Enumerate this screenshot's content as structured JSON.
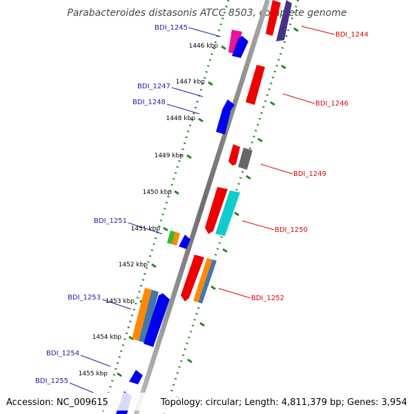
{
  "title": "Parabacteroides distasonis ATCC 8503, complete genome",
  "footer": {
    "accession": "Accession: NC_009615",
    "topology": "Topology: circular; Length: 4,811,379 bp; Genes: 3,954"
  },
  "kbp_labels": [
    "1446 kbp",
    "1447 kbp",
    "1448 kbp",
    "1449 kbp",
    "1450 kbp",
    "1451 kbp",
    "1452 kbp",
    "1453 kbp",
    "1454 kbp",
    "1455 kbp"
  ],
  "gene_labels": [
    {
      "text": "BDI_1245",
      "strand": "minus"
    },
    {
      "text": "BDI_1247",
      "strand": "minus"
    },
    {
      "text": "BDI_1248",
      "strand": "minus"
    },
    {
      "text": "BDI_1251",
      "strand": "minus"
    },
    {
      "text": "BDI_1253",
      "strand": "minus"
    },
    {
      "text": "BDI_1254",
      "strand": "minus"
    },
    {
      "text": "BDI_1255",
      "strand": "minus"
    },
    {
      "text": "BDI_1244",
      "strand": "plus"
    },
    {
      "text": "BDI_1246",
      "strand": "plus"
    },
    {
      "text": "BDI_1249",
      "strand": "plus"
    },
    {
      "text": "BDI_1250",
      "strand": "plus"
    },
    {
      "text": "BDI_1252",
      "strand": "plus"
    }
  ],
  "colors": {
    "backbone": "#808080",
    "dots": "#2a8a2a",
    "minus_label": "#1a1aa6",
    "plus_label": "#dd0000",
    "blue": "#0000ee",
    "red": "#ee0000",
    "magenta": "#ee1199",
    "cyan": "#11cccc",
    "grey": "#666666",
    "orange": "#ff8800",
    "steel": "#4477aa",
    "green": "#33bb33",
    "indigo": "#443388"
  }
}
